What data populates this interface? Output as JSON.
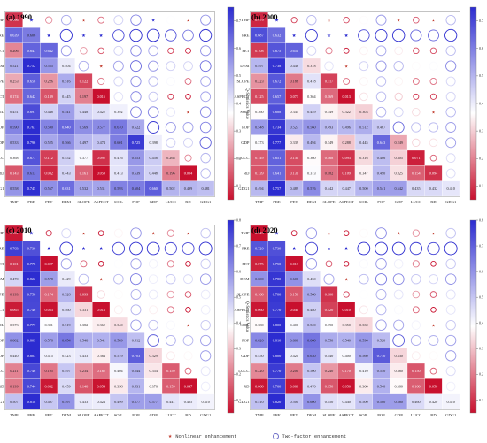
{
  "labels": [
    "TMP",
    "PRE",
    "PET",
    "DEM",
    "SLOPE",
    "ASPECT",
    "SOIL",
    "POP",
    "GDP",
    "LUCC",
    "RD",
    "GDG1"
  ],
  "legend": {
    "star_label": "Nonlinear enhancement",
    "circle_label": "Two-factor enhancement"
  },
  "colorbar_label": "Q-Statistics Value",
  "colors": {
    "low": "#c8102e",
    "mid": "#ffffff",
    "high": "#2c2cd0",
    "star": "#c0392b",
    "circle": "#6f6fc8"
  },
  "chart_data": [
    {
      "type": "heatmap",
      "title": "(a) 1990",
      "colorbar_ticks": [
        0.1,
        0.2,
        0.3,
        0.4,
        0.5,
        0.6,
        0.7
      ],
      "crange": [
        0.05,
        0.75
      ],
      "diagonal": [
        0.096,
        0.606,
        0.642,
        0.404,
        0.122,
        0.015,
        0.392,
        0.522,
        0.398,
        0.268,
        0.004,
        0.481
      ],
      "rows": [
        [],
        [
          0.639
        ],
        [
          0.206,
          0.647
        ],
        [
          0.521,
          0.752,
          0.555
        ],
        [
          0.253,
          0.658,
          0.226,
          0.516
        ],
        [
          0.174,
          0.642,
          0.139,
          0.445,
          0.197
        ],
        [
          0.451,
          0.691,
          0.448,
          0.541,
          0.448,
          0.422
        ],
        [
          0.59,
          0.767,
          0.59,
          0.64,
          0.569,
          0.577,
          0.61
        ],
        [
          0.533,
          0.796,
          0.525,
          0.566,
          0.497,
          0.474,
          0.601,
          0.725
        ],
        [
          0.368,
          0.677,
          0.112,
          0.452,
          0.377,
          0.092,
          0.416,
          0.553,
          0.458
        ],
        [
          0.143,
          0.613,
          0.082,
          0.443,
          0.161,
          0.05,
          0.413,
          0.539,
          0.448,
          0.196
        ],
        [
          0.558,
          0.745,
          0.567,
          0.631,
          0.532,
          0.531,
          0.593,
          0.604,
          0.66,
          0.502,
          0.499
        ]
      ]
    },
    {
      "type": "heatmap",
      "title": "(b) 2000",
      "colorbar_ticks": [
        0.1,
        0.2,
        0.3,
        0.4,
        0.5,
        0.6,
        0.7
      ],
      "crange": [
        0.05,
        0.75
      ],
      "diagonal": [
        0.079,
        0.632,
        0.651,
        0.318,
        0.117,
        0.013,
        0.303,
        0.467,
        0.249,
        0.071,
        0.094,
        0.41
      ],
      "rows": [
        [],
        [
          0.687
        ],
        [
          0.108,
          0.675
        ],
        [
          0.497,
          0.738,
          0.448
        ],
        [
          0.223,
          0.672,
          0.188,
          0.418
        ],
        [
          0.125,
          0.657,
          0.073,
          0.364,
          0.169
        ],
        [
          0.36,
          0.688,
          0.345,
          0.449,
          0.349,
          0.322
        ],
        [
          0.548,
          0.734,
          0.527,
          0.56,
          0.493,
          0.496,
          0.512
        ],
        [
          0.373,
          0.777,
          0.339,
          0.494,
          0.349,
          0.288,
          0.445,
          0.643
        ],
        [
          0.149,
          0.651,
          0.13,
          0.36,
          0.168,
          0.093,
          0.316,
          0.486,
          0.305
        ],
        [
          0.139,
          0.641,
          0.131,
          0.373,
          0.182,
          0.109,
          0.347,
          0.49,
          0.325,
          0.154
        ],
        [
          0.494,
          0.757,
          0.489,
          0.576,
          0.442,
          0.447,
          0.5,
          0.541,
          0.542,
          0.435,
          0.432
        ]
      ]
    },
    {
      "type": "heatmap",
      "title": "(c) 2010",
      "colorbar_ticks": [
        0.1,
        0.2,
        0.3,
        0.4,
        0.5,
        0.6,
        0.7,
        0.8
      ],
      "crange": [
        0.05,
        0.8
      ],
      "diagonal": [
        0.061,
        0.73,
        0.027,
        0.429,
        0.099,
        0.013,
        0.34,
        0.512,
        0.329,
        0.159,
        0.047,
        0.41
      ],
      "rows": [
        [],
        [
          0.763
        ],
        [
          0.101,
          0.778
        ],
        [
          0.47,
          0.822,
          0.578
        ],
        [
          0.193,
          0.75,
          0.174,
          0.528
        ],
        [
          0.065,
          0.746,
          0.053,
          0.46,
          0.331
        ],
        [
          0.373,
          0.777,
          0.391,
          0.519,
          0.382,
          0.362
        ],
        [
          0.602,
          0.809,
          0.578,
          0.654,
          0.546,
          0.541,
          0.589
        ],
        [
          0.44,
          0.803,
          0.415,
          0.423,
          0.433,
          0.364,
          0.519,
          0.703
        ],
        [
          0.211,
          0.746,
          0.195,
          0.497,
          0.234,
          0.182,
          0.404,
          0.544,
          0.354
        ],
        [
          0.199,
          0.744,
          0.062,
          0.459,
          0.146,
          0.054,
          0.358,
          0.531,
          0.376,
          0.159
        ],
        [
          0.507,
          0.818,
          0.497,
          0.597,
          0.433,
          0.424,
          0.499,
          0.577,
          0.577,
          0.441,
          0.425
        ]
      ]
    },
    {
      "type": "heatmap",
      "title": "(d) 2020",
      "colorbar_ticks": [
        0.1,
        0.2,
        0.3,
        0.4,
        0.5,
        0.6,
        0.7,
        0.8
      ],
      "crange": [
        0.05,
        0.8
      ],
      "diagonal": [
        0.023,
        0.73,
        0.013,
        0.45,
        0.1,
        0.01,
        0.33,
        0.52,
        0.33,
        0.15,
        0.05,
        0.41
      ],
      "rows": [
        [],
        [
          0.72
        ],
        [
          0.075,
          0.75
        ],
        [
          0.6,
          0.78,
          0.6
        ],
        [
          0.16,
          0.78,
          0.15,
          0.56
        ],
        [
          0.06,
          0.77,
          0.04,
          0.48,
          0.12
        ],
        [
          0.38,
          0.8,
          0.4,
          0.52,
          0.39,
          0.35
        ],
        [
          0.62,
          0.81,
          0.6,
          0.66,
          0.55,
          0.54,
          0.59
        ],
        [
          0.45,
          0.8,
          0.42,
          0.63,
          0.44,
          0.4,
          0.56,
          0.71
        ],
        [
          0.22,
          0.77,
          0.2,
          0.5,
          0.24,
          0.17,
          0.41,
          0.55,
          0.36
        ],
        [
          0.06,
          0.76,
          0.06,
          0.47,
          0.15,
          0.05,
          0.36,
          0.54,
          0.38,
          0.16
        ],
        [
          0.51,
          0.82,
          0.5,
          0.6,
          0.45,
          0.44,
          0.5,
          0.58,
          0.58,
          0.46,
          0.42
        ]
      ]
    }
  ]
}
